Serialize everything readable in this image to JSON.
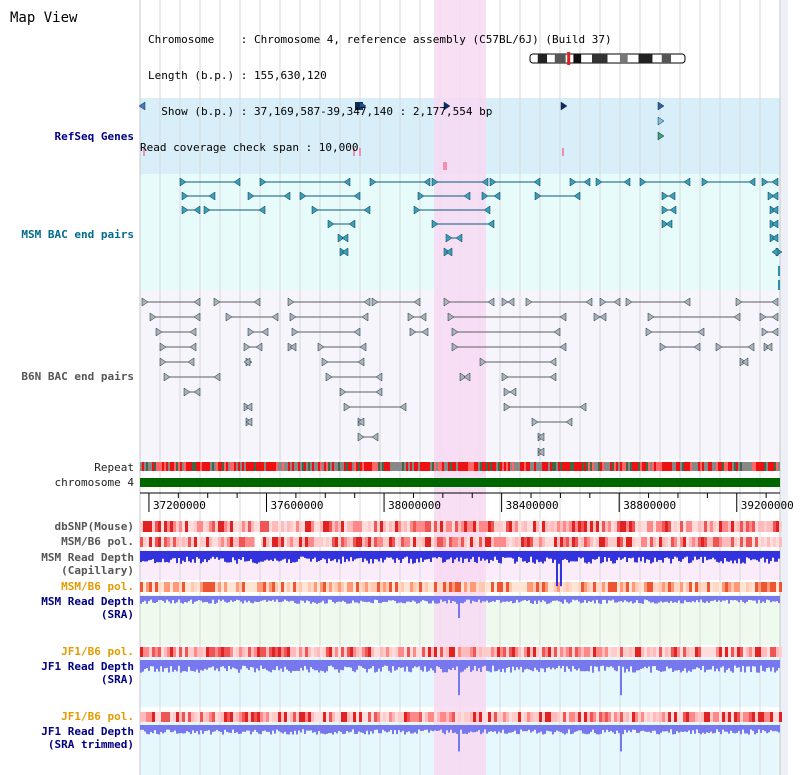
{
  "header": {
    "title": "Map View",
    "info_lines": [
      "Chromosome    : Chromosome 4, reference assembly (C57BL/6J) (Build 37)",
      "Length (b.p.) : 155,630,120",
      "  Show (b.p.) : 37,169,587-39,347,140 : 2,177,554 bp",
      "Read coverage check span : 10,000"
    ]
  },
  "tracks": {
    "refseq": "RefSeq Genes",
    "msm_bac": "MSM BAC end pairs",
    "b6n_bac": "B6N BAC end pairs",
    "repeat": "Repeat",
    "chromosome": "chromosome 4",
    "dbsnp": "dbSNP(Mouse)",
    "msm_pol_1": "MSM/B6 pol.",
    "msm_depth_cap_1": "MSM Read Depth",
    "msm_depth_cap_2": "(Capillary)",
    "msm_pol_2": "MSM/B6 pol.",
    "msm_depth_sra_1": "MSM Read Depth",
    "msm_depth_sra_2": "(SRA)",
    "jf1_pol_1": "JF1/B6 pol.",
    "jf1_depth_1": "JF1 Read Depth",
    "jf1_depth_2": "(SRA)",
    "jf1_pol_2": "JF1/B6 pol.",
    "jf1_trim_1": "JF1 Read Depth",
    "jf1_trim_2": "(SRA trimmed)"
  },
  "axis": {
    "ticks": [
      "37200000",
      "37600000",
      "38000000",
      "38400000",
      "38800000",
      "39200000"
    ],
    "start": 37169587,
    "end": 39347140
  },
  "colors": {
    "highlight": "#f7d9f2",
    "refseq_bg": "#d8effa",
    "msm_bg": "#e8fbfb",
    "b6n_bg": "#f5f5fb",
    "chromosome_bar": "#006600",
    "depth_capillary": "#3333dd",
    "depth_sra": "#7777ee"
  }
}
